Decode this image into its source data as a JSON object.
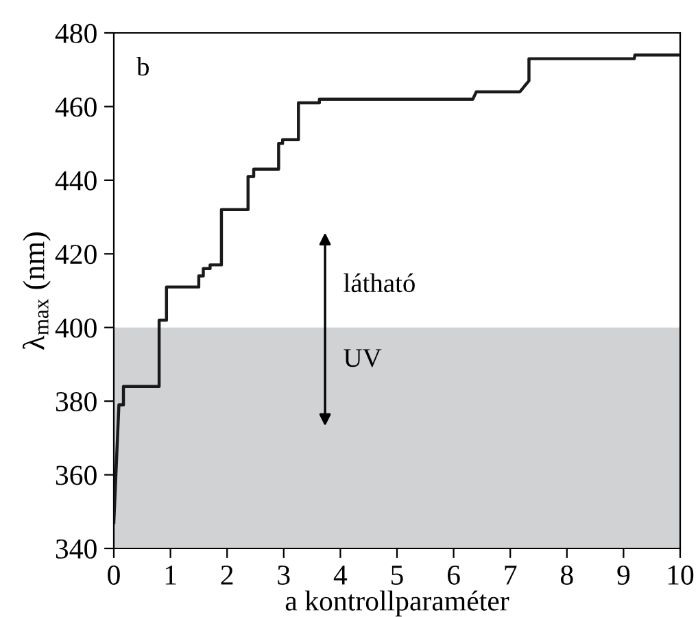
{
  "chart_data": {
    "type": "line",
    "xlabel": "a kontrollparaméter",
    "ylabel": "λ$_{max}$ (nm)",
    "series": [
      {
        "color": "#1a1a1a",
        "x": [
          0,
          0.09,
          0.17,
          0.17,
          0.8,
          0.8,
          0.93,
          0.93,
          1.5,
          1.5,
          1.58,
          1.58,
          1.7,
          1.7,
          1.9,
          1.9,
          2.37,
          2.37,
          2.47,
          2.47,
          2.91,
          2.91,
          2.98,
          2.98,
          3.26,
          3.26,
          3.63,
          3.63,
          6.34,
          6.4,
          7.17,
          7.33,
          7.33,
          9.19,
          9.2,
          10
        ],
        "values": [
          347,
          379,
          379,
          384,
          384,
          402,
          402,
          411,
          411,
          414,
          414,
          416,
          416,
          417,
          417,
          432,
          432,
          441,
          441,
          443,
          443,
          450,
          450,
          451,
          451,
          461,
          461,
          462,
          462,
          464,
          464,
          467,
          473,
          473,
          474,
          474
        ]
      }
    ],
    "bands": [
      {
        "axis": "y",
        "from": 340,
        "to": 400,
        "color": "#d1d2d4"
      }
    ],
    "annotations": [
      "b",
      "látható",
      "UV"
    ],
    "xlim": [
      0,
      10
    ],
    "ylim": [
      340,
      480
    ],
    "xticks": [
      0,
      1,
      2,
      3,
      4,
      5,
      6,
      7,
      8,
      9,
      10
    ],
    "yticks": [
      340,
      360,
      380,
      400,
      420,
      440,
      460,
      480
    ],
    "grid": false,
    "legend": false,
    "marker": "none",
    "line_style": "solid"
  }
}
